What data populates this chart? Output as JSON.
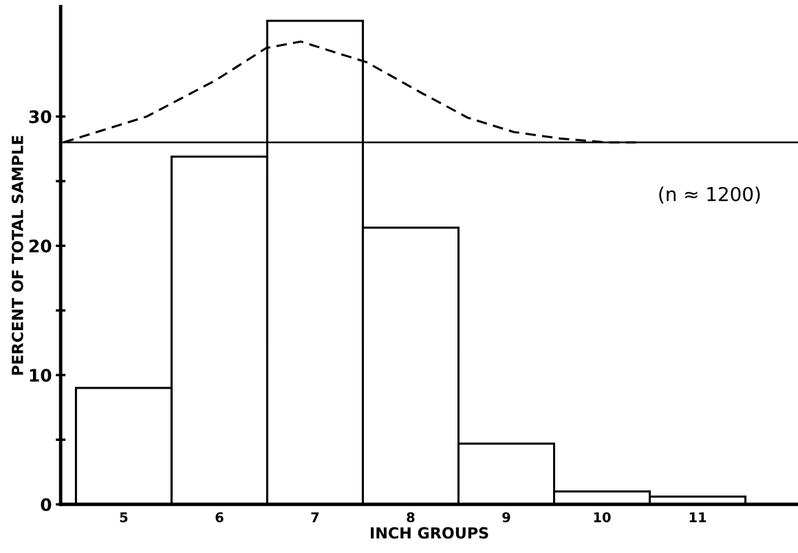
{
  "chart_data": {
    "type": "histogram",
    "xlabel": "INCH GROUPS",
    "ylabel": "PERCENT OF TOTAL SAMPLE",
    "bins": [
      4.5,
      5.5,
      6.5,
      7.5,
      8.5,
      9.5,
      10.5,
      11.5
    ],
    "values": [
      9,
      26.9,
      37.4,
      21.4,
      4.7,
      1.0,
      0.6
    ],
    "color": "#ffffff",
    "series": [
      {
        "type": "line",
        "line_style": "dashed",
        "color": "#000000",
        "x": [
          4.37,
          5.24,
          5.96,
          6.49,
          6.85,
          7.54,
          8.12,
          8.6,
          9.08,
          9.56,
          10.04,
          10.4
        ],
        "values": [
          28.0,
          30.0,
          32.8,
          35.3,
          35.8,
          34.2,
          31.8,
          29.9,
          28.8,
          28.3,
          28.0,
          28.0
        ]
      }
    ],
    "ref_lines": [
      {
        "axis": "y",
        "value": 28,
        "color": "#000000",
        "line_style": "solid"
      }
    ],
    "annotations": [
      "(n ≈ 1200)"
    ],
    "xlim": [
      4.34,
      12.05
    ],
    "ylim": [
      0,
      38.5
    ],
    "xticks": [
      5,
      6,
      7,
      8,
      9,
      10,
      11
    ],
    "yticks": [
      0,
      {
        "value": 5,
        "label": null
      },
      10,
      {
        "value": 15,
        "label": null
      },
      20,
      {
        "value": 25,
        "label": null
      },
      30
    ],
    "grid": false,
    "legend": false
  }
}
